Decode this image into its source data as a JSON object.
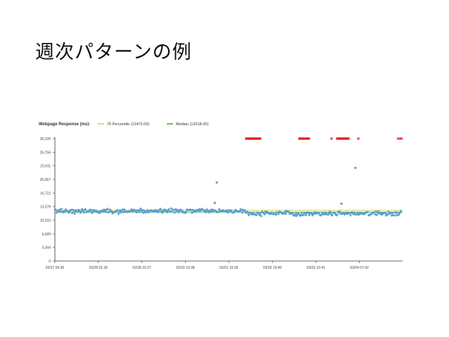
{
  "slide": {
    "title": "週次パターンの例"
  },
  "colors": {
    "points": "#5a9fd0",
    "errors": "#e02020",
    "p75_line": "#d6db78",
    "median_line": "#6cbf5a",
    "axis": "#333333",
    "grid": "#e6e6e6"
  },
  "chart_data": {
    "type": "scatter",
    "title": "Webpage Response (ms):",
    "legend": [
      {
        "label": "75 Percentile (12472.00)",
        "color": "#d6db78"
      },
      {
        "label": "Median (12018.00)",
        "color": "#6cbf5a"
      }
    ],
    "legend_position": "top-left",
    "grid": false,
    "ylim": [
      0,
      30100
    ],
    "y_ticks": [
      "30,100",
      "26,756",
      "23,411",
      "20,067",
      "16,722",
      "13,378",
      "10,033",
      "6,689",
      "3,344",
      "0"
    ],
    "y_tick_values": [
      30100,
      26756,
      23411,
      20067,
      16722,
      13378,
      10033,
      6689,
      3344,
      0
    ],
    "x_ticks": [
      "02/27 04:35",
      "02/28 01:36",
      "02/28 22:37",
      "02/29 19:38",
      "03/01 16:39",
      "03/02 13:40",
      "03/03 10:41",
      "03/04 07:42"
    ],
    "x_tick_days": [
      0.0,
      0.876,
      1.752,
      2.627,
      3.503,
      4.379,
      5.255,
      6.13
    ],
    "xlim_days": [
      0.0,
      7.0
    ],
    "p75": 12472,
    "median": 12018,
    "baseline_before": 12300,
    "baseline_after": 11700,
    "change_day": 3.85,
    "noise": 550,
    "sample_count": 420,
    "outliers": [
      {
        "x": 3.26,
        "y": 19300
      },
      {
        "x": 6.05,
        "y": 22900
      },
      {
        "x": 5.77,
        "y": 14100
      },
      {
        "x": 3.22,
        "y": 14300
      }
    ],
    "timeouts": {
      "y": 30100,
      "ranges": [
        [
          3.85,
          4.15
        ],
        [
          4.92,
          5.12
        ],
        [
          5.68,
          5.92
        ]
      ],
      "singles": [
        5.57,
        6.11,
        6.91,
        6.95,
        6.98
      ]
    }
  }
}
